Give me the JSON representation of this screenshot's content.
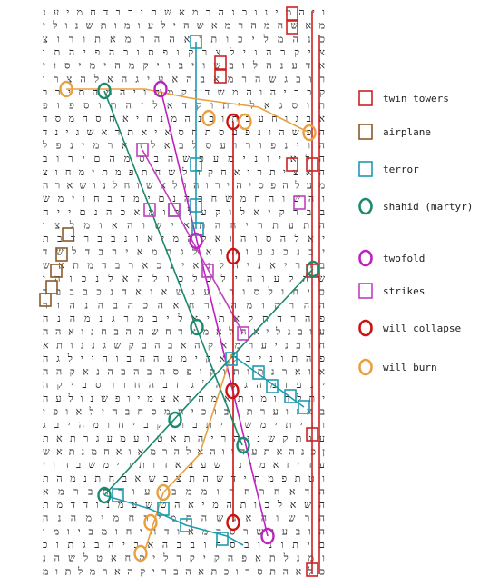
{
  "grid": {
    "rows": [
      "נעימחדבריםשאמרהנכונימהיו",
      "ילונשתומועליהשאמרהמהשאמ",
      "צורותאמרההאותוכילמהנכ",
      "ותהיפהכוספוקרצליוהרקיצ",
      "יוסימיהמקיוביושבולהנעדא",
      "ורצהלאהגיעאהבאמרהשגבור",
      "בריתהמהיוהמקודשמהוהירבק",
      "פופסותהזלאדקותילאגסות",
      "דסמהסחאיחנמהנכותבעחוגבא",
      "דניגשארתאיאסחתסעפנוהשכה",
      "לפנימראחלאבלסעורופניוה",
      "בוריםהמסבהשפעמינויאלה",
      "צוחמיתמפתחשלהקחאורתיצאה",
      "הראשונלחושאלוהוריהיספהלעמ",
      "שמיוחבדמיםנהכחשמחהושהו",
      "חייםנהכאמורלעקולאיקרבב",
      "וצלמואהושיאתהחירתעתה",
      "תבדרבבנואימהלאוהוסהלאי",
      "דשלדבריאמהגלאוהוענכנבי",
      "שאתמדבראכניאנלהינאירוב",
      "יהוכנלאהלוכלכליהועלהש",
      "דבבבכנדאואשגעודוסלוחים",
      "רוהנהבהכהאחריהמוקרהה",
      "הנהמנגרמבילאיתאלחדרהפ",
      "ההאונחבההשחדאמאלהאילנבוע",
      "אתוננגשקבהבאהקאמרעינבוח",
      "הגלייהובההעמיקאלבינותהפ",
      "ההקאנהבהבהספיקותותנראוא",
      "הקיבסרוחהבחגלהסגהמזעני",
      "העלונשפוימצאדהמאתומוחלתי",
      "יפואליהבחסמחיכוביתרעוזאב",
      "גביהמוחיבקיובתידשמיתיזו",
      "תאתרגעמעוטאתהירהינשקתוע",
      "שאתנמחאואמרהלאהוידעתאהנכן",
      "יוהבשמירתודאבעשונימאזידע",
      "תהמנתחבאשבצתהשדיתמפתטו",
      "אמרבתרועובממוהחרחאדה",
      "תמדדונמעשטהאימהתוכלאשה",
      "הנהמימחרימתהשגאהושרה",
      "ומויבמוחיחדואמהסרשיעבוה",
      "כותגבהיבאהבבוחסבונותים",
      "נהשלטאחקילדקיקהפאתלנמו",
      "מותלמראהקירבהאתכורסתהאלכ"
    ]
  },
  "legend": [
    {
      "label": "twin towers",
      "color": "#cc2222",
      "shape": "rect-icon"
    },
    {
      "label": "airplane",
      "color": "#8b5a2b",
      "shape": "rect-icon"
    },
    {
      "label": "terror",
      "color": "#1f9bb0",
      "shape": "rect-icon"
    },
    {
      "label": "shahid (martyr)",
      "color": "#1a8a6e",
      "shape": "ellipse-icon"
    },
    {
      "label": "twofold",
      "color": "#c020c0",
      "shape": "ellipse-icon"
    },
    {
      "label": "strikes",
      "color": "#c040c0",
      "shape": "rect-icon"
    },
    {
      "label": "will collapse",
      "color": "#cc1111",
      "shape": "ellipse-icon"
    },
    {
      "label": "will burn",
      "color": "#e8a040",
      "shape": "ellipse-icon"
    }
  ]
}
